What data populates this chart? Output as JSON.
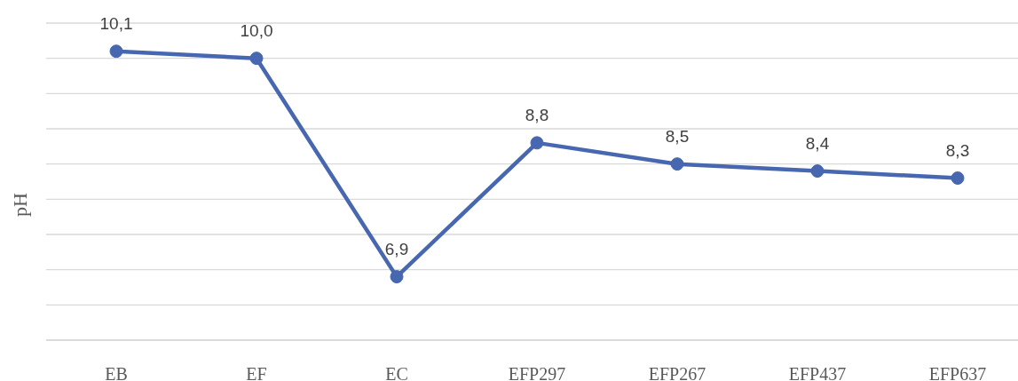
{
  "chart_data": {
    "type": "line",
    "ylabel": "pH",
    "categories": [
      "EB",
      "EF",
      "EC",
      "EFP297",
      "EFP267",
      "EFP437",
      "EFP637"
    ],
    "series": [
      {
        "color": "#4767b0",
        "values": [
          10.1,
          10.0,
          6.9,
          8.8,
          8.5,
          8.4,
          8.3
        ],
        "value_labels": [
          "10,1",
          "10,0",
          "6,9",
          "8,8",
          "8,5",
          "8,4",
          "8,3"
        ]
      }
    ],
    "ylim": [
      6,
      10.5
    ],
    "yticks": [
      {
        "value": 6,
        "label": null
      },
      {
        "value": 6.5,
        "label": null
      },
      {
        "value": 7,
        "label": null
      },
      {
        "value": 7.5,
        "label": null
      },
      {
        "value": 8,
        "label": null
      },
      {
        "value": 8.5,
        "label": null
      },
      {
        "value": 9,
        "label": null
      },
      {
        "value": 9.5,
        "label": null
      },
      {
        "value": 10,
        "label": null
      },
      {
        "value": 10.5,
        "label": null
      }
    ],
    "grid": "y",
    "tick_labels": "x",
    "marker": "circle",
    "line_style": "solid"
  }
}
